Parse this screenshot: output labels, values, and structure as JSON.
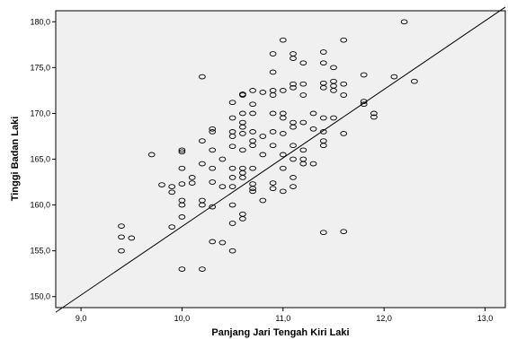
{
  "chart_data": {
    "type": "scatter",
    "title": "",
    "xlabel": "Panjang Jari Tengah Kiri Laki",
    "ylabel": "Tinggi Badan Laki",
    "xlim": [
      8.75,
      13.2
    ],
    "ylim": [
      148.8,
      181.2
    ],
    "x_ticks": [
      9.0,
      10.0,
      11.0,
      12.0,
      13.0
    ],
    "x_tick_labels": [
      "9,0",
      "10,0",
      "11,0",
      "12,0",
      "13,0"
    ],
    "y_ticks": [
      150.0,
      155.0,
      160.0,
      165.0,
      170.0,
      175.0,
      180.0
    ],
    "y_tick_labels": [
      "150,0",
      "155,0",
      "160,0",
      "165,0",
      "170,0",
      "175,0",
      "180,0"
    ],
    "grid": false,
    "legend": "none",
    "reference_line": {
      "x": [
        8.75,
        13.2
      ],
      "y": [
        148.3,
        181.6
      ]
    },
    "colors": {
      "plot_background": "#f0f0f0",
      "marker_stroke": "#000000",
      "line": "#000000"
    },
    "points": [
      [
        9.4,
        157.7
      ],
      [
        9.4,
        156.5
      ],
      [
        9.4,
        155.0
      ],
      [
        9.5,
        156.4
      ],
      [
        9.7,
        165.5
      ],
      [
        9.8,
        162.2
      ],
      [
        9.9,
        162.0
      ],
      [
        9.9,
        161.4
      ],
      [
        9.9,
        157.6
      ],
      [
        10.0,
        166.0
      ],
      [
        10.0,
        165.8
      ],
      [
        10.0,
        164.0
      ],
      [
        10.0,
        162.3
      ],
      [
        10.0,
        160.5
      ],
      [
        10.0,
        160.0
      ],
      [
        10.0,
        158.7
      ],
      [
        10.0,
        153.0
      ],
      [
        10.1,
        163.0
      ],
      [
        10.1,
        162.4
      ],
      [
        10.2,
        174.0
      ],
      [
        10.2,
        167.0
      ],
      [
        10.2,
        164.5
      ],
      [
        10.2,
        160.5
      ],
      [
        10.2,
        160.0
      ],
      [
        10.2,
        153.0
      ],
      [
        10.3,
        168.3
      ],
      [
        10.3,
        168.0
      ],
      [
        10.3,
        166.0
      ],
      [
        10.3,
        164.0
      ],
      [
        10.3,
        162.5
      ],
      [
        10.3,
        159.8
      ],
      [
        10.3,
        156.0
      ],
      [
        10.4,
        165.0
      ],
      [
        10.4,
        162.0
      ],
      [
        10.4,
        155.9
      ],
      [
        10.5,
        171.2
      ],
      [
        10.5,
        169.5
      ],
      [
        10.5,
        168.0
      ],
      [
        10.5,
        167.5
      ],
      [
        10.5,
        166.4
      ],
      [
        10.5,
        164.0
      ],
      [
        10.5,
        163.0
      ],
      [
        10.5,
        162.0
      ],
      [
        10.5,
        160.0
      ],
      [
        10.5,
        158.0
      ],
      [
        10.5,
        155.0
      ],
      [
        10.6,
        172.1
      ],
      [
        10.6,
        172.0
      ],
      [
        10.6,
        170.0
      ],
      [
        10.6,
        169.0
      ],
      [
        10.6,
        168.5
      ],
      [
        10.6,
        167.8
      ],
      [
        10.6,
        166.0
      ],
      [
        10.6,
        164.0
      ],
      [
        10.6,
        163.5
      ],
      [
        10.6,
        163.0
      ],
      [
        10.6,
        159.0
      ],
      [
        10.6,
        158.5
      ],
      [
        10.7,
        172.5
      ],
      [
        10.7,
        171.0
      ],
      [
        10.7,
        170.0
      ],
      [
        10.7,
        168.0
      ],
      [
        10.7,
        167.0
      ],
      [
        10.7,
        166.5
      ],
      [
        10.7,
        164.0
      ],
      [
        10.7,
        162.3
      ],
      [
        10.7,
        161.8
      ],
      [
        10.7,
        161.5
      ],
      [
        10.8,
        172.3
      ],
      [
        10.8,
        167.5
      ],
      [
        10.8,
        165.5
      ],
      [
        10.8,
        160.5
      ],
      [
        10.9,
        176.5
      ],
      [
        10.9,
        174.5
      ],
      [
        10.9,
        172.5
      ],
      [
        10.9,
        172.0
      ],
      [
        10.9,
        170.0
      ],
      [
        10.9,
        168.0
      ],
      [
        10.9,
        166.5
      ],
      [
        10.9,
        162.4
      ],
      [
        10.9,
        161.8
      ],
      [
        11.0,
        178.0
      ],
      [
        11.0,
        172.5
      ],
      [
        11.0,
        170.0
      ],
      [
        11.0,
        169.5
      ],
      [
        11.0,
        167.8
      ],
      [
        11.0,
        165.5
      ],
      [
        11.0,
        164.0
      ],
      [
        11.0,
        161.5
      ],
      [
        11.1,
        176.5
      ],
      [
        11.1,
        176.0
      ],
      [
        11.1,
        173.2
      ],
      [
        11.1,
        172.8
      ],
      [
        11.1,
        169.0
      ],
      [
        11.1,
        168.5
      ],
      [
        11.1,
        166.5
      ],
      [
        11.1,
        165.0
      ],
      [
        11.1,
        163.0
      ],
      [
        11.1,
        162.0
      ],
      [
        11.2,
        175.5
      ],
      [
        11.2,
        173.2
      ],
      [
        11.2,
        172.0
      ],
      [
        11.2,
        169.0
      ],
      [
        11.2,
        166.0
      ],
      [
        11.2,
        165.0
      ],
      [
        11.2,
        164.5
      ],
      [
        11.3,
        170.0
      ],
      [
        11.3,
        168.3
      ],
      [
        11.3,
        164.5
      ],
      [
        11.4,
        176.7
      ],
      [
        11.4,
        175.5
      ],
      [
        11.4,
        173.3
      ],
      [
        11.4,
        172.8
      ],
      [
        11.4,
        169.5
      ],
      [
        11.4,
        168.0
      ],
      [
        11.4,
        167.0
      ],
      [
        11.4,
        166.5
      ],
      [
        11.4,
        157.0
      ],
      [
        11.5,
        175.0
      ],
      [
        11.5,
        173.5
      ],
      [
        11.5,
        173.0
      ],
      [
        11.5,
        172.5
      ],
      [
        11.5,
        169.5
      ],
      [
        11.6,
        178.0
      ],
      [
        11.6,
        173.2
      ],
      [
        11.6,
        172.0
      ],
      [
        11.6,
        167.8
      ],
      [
        11.6,
        157.1
      ],
      [
        11.8,
        174.2
      ],
      [
        11.8,
        171.3
      ],
      [
        11.8,
        171.0
      ],
      [
        11.9,
        170.0
      ],
      [
        11.9,
        169.6
      ],
      [
        12.1,
        174.0
      ],
      [
        12.2,
        180.0
      ],
      [
        12.3,
        173.5
      ]
    ]
  }
}
